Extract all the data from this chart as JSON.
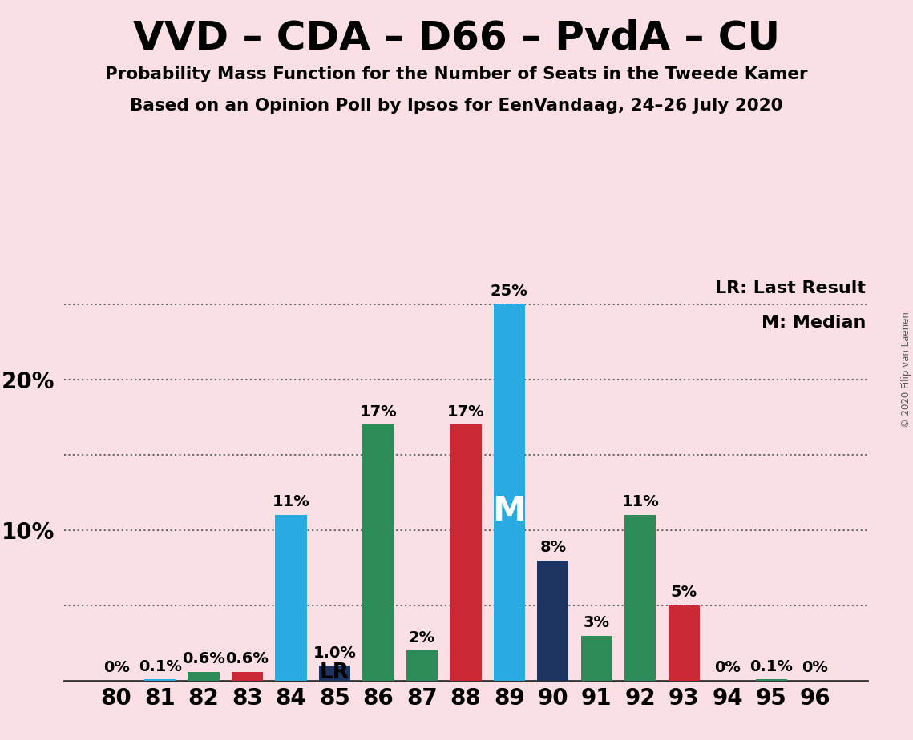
{
  "title": "VVD – CDA – D66 – PvdA – CU",
  "subtitle1": "Probability Mass Function for the Number of Seats in the Tweede Kamer",
  "subtitle2": "Based on an Opinion Poll by Ipsos for EenVandaag, 24–26 July 2020",
  "copyright": "© 2020 Filip van Laenen",
  "legend_lr": "LR: Last Result",
  "legend_m": "M: Median",
  "seats": [
    80,
    81,
    82,
    83,
    84,
    85,
    86,
    87,
    88,
    89,
    90,
    91,
    92,
    93,
    94,
    95,
    96
  ],
  "values": [
    0.0,
    0.1,
    0.6,
    0.6,
    11.0,
    1.0,
    17.0,
    2.0,
    17.0,
    25.0,
    8.0,
    3.0,
    11.0,
    5.0,
    0.0,
    0.1,
    0.0
  ],
  "labels": [
    "0%",
    "0.1%",
    "0.6%",
    "0.6%",
    "11%",
    "1.0%",
    "17%",
    "2%",
    "17%",
    "25%",
    "8%",
    "3%",
    "11%",
    "5%",
    "0%",
    "0.1%",
    "0%"
  ],
  "show_label": [
    true,
    true,
    true,
    true,
    true,
    true,
    true,
    true,
    true,
    true,
    true,
    true,
    true,
    true,
    true,
    true,
    true
  ],
  "colors": [
    "#29ABE2",
    "#29ABE2",
    "#2E8B57",
    "#CC2936",
    "#29ABE2",
    "#1D3461",
    "#2E8B57",
    "#2E8B57",
    "#CC2936",
    "#29ABE2",
    "#1D3461",
    "#2E8B57",
    "#2E8B57",
    "#CC2936",
    "#29ABE2",
    "#2E8B57",
    "#29ABE2"
  ],
  "lr_seat": 85,
  "median_seat": 89,
  "ylim_max": 27,
  "background_color": "#FAE0E4",
  "grid_color": "#666666",
  "bar_width": 0.72,
  "title_fontsize": 36,
  "subtitle_fontsize": 15.5,
  "axis_tick_fontsize": 20,
  "label_fontsize": 14,
  "legend_fontsize": 16,
  "ylabel_10": "10%",
  "ylabel_20": "20%"
}
